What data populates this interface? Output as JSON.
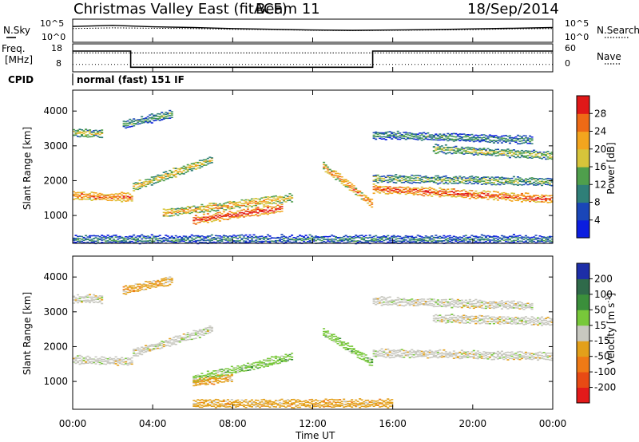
{
  "header": {
    "title": "Christmas Valley East (fitACF)",
    "beam": "Beam 11",
    "date": "18/Sep/2014"
  },
  "nsky_panel": {
    "left_label": "N.Sky",
    "left_ticks": [
      "10^5",
      "10^0"
    ],
    "right_label": "N.Search",
    "right_ticks": [
      "10^5",
      "10^0"
    ]
  },
  "freq_panel": {
    "left_label_line1": "Freq.",
    "left_label_line2": "[MHz]",
    "left_ticks": [
      "18",
      "8"
    ],
    "right_label": "Nave",
    "right_ticks": [
      "60",
      "0"
    ]
  },
  "cpid": {
    "label": "CPID",
    "text": "normal (fast) 151 IF"
  },
  "x_axis": {
    "label": "Time UT",
    "ticks": [
      "00:00",
      "04:00",
      "08:00",
      "12:00",
      "16:00",
      "20:00",
      "00:00"
    ]
  },
  "colorbars": {
    "power": {
      "label": "Power [dB]",
      "ticks": [
        "4",
        "8",
        "12",
        "16",
        "20",
        "24",
        "28"
      ],
      "colors": [
        "#0b1de0",
        "#1a46b8",
        "#2f7f78",
        "#4f9f4c",
        "#d7c43a",
        "#f3a51e",
        "#ee6a16",
        "#e01818"
      ]
    },
    "velocity": {
      "label": "Velocity [m s",
      "label_sup": "-1",
      "label_end": "]",
      "ticks": [
        "200",
        "100",
        "50",
        "15",
        "-15",
        "-50",
        "-100",
        "-200"
      ],
      "colors": [
        "#1d2ea8",
        "#2f6a4a",
        "#3b8f3b",
        "#78c83a",
        "#c8c8c0",
        "#e3a01a",
        "#ef7a16",
        "#e84a14",
        "#e31a1a"
      ]
    }
  },
  "chart_data": [
    {
      "type": "heatmap",
      "name": "power",
      "ylabel": "Slant Range [km]",
      "xlabel": "",
      "ylim": [
        200,
        4600
      ],
      "xlim": [
        0,
        24
      ],
      "yticks": [
        "1000",
        "2000",
        "3000",
        "4000"
      ],
      "bands": [
        {
          "x": [
            0.0,
            3.0
          ],
          "y_start": [
            1550,
            1500
          ],
          "y_end": [
            1450,
            1800
          ],
          "level": 0.85
        },
        {
          "x": [
            0.0,
            1.5
          ],
          "y_start": [
            3350,
            3350
          ],
          "y_end": [
            3350,
            3350
          ],
          "level": 0.55
        },
        {
          "x": [
            3.0,
            7.0
          ],
          "y_start": [
            1800,
            2600
          ],
          "y_end": [
            1700,
            2400
          ],
          "level": 0.6
        },
        {
          "x": [
            2.5,
            5.0
          ],
          "y_start": [
            3600,
            3900
          ],
          "y_end": [
            3600,
            3900
          ],
          "level": 0.4
        },
        {
          "x": [
            4.5,
            11.0
          ],
          "y_start": [
            1050,
            1500
          ],
          "y_end": [
            1100,
            1700
          ],
          "level": 0.7
        },
        {
          "x": [
            6.0,
            10.5
          ],
          "y_start": [
            850,
            1200
          ],
          "y_end": [
            900,
            1300
          ],
          "level": 0.95
        },
        {
          "x": [
            12.5,
            15.0
          ],
          "y_start": [
            2400,
            1300
          ],
          "y_end": [
            2400,
            1300
          ],
          "level": 0.8
        },
        {
          "x": [
            15.0,
            24.0
          ],
          "y_start": [
            1750,
            1450
          ],
          "y_end": [
            1750,
            1450
          ],
          "level": 0.9
        },
        {
          "x": [
            15.0,
            24.0
          ],
          "y_start": [
            2050,
            1950
          ],
          "y_end": [
            2050,
            1950
          ],
          "level": 0.45
        },
        {
          "x": [
            15.0,
            23.0
          ],
          "y_start": [
            3300,
            3150
          ],
          "y_end": [
            3300,
            3150
          ],
          "level": 0.35
        },
        {
          "x": [
            18.0,
            24.0
          ],
          "y_start": [
            2900,
            2700
          ],
          "y_end": [
            2900,
            2700
          ],
          "level": 0.5
        },
        {
          "x": [
            0.0,
            24.0
          ],
          "y_start": [
            300,
            300
          ],
          "y_end": [
            300,
            300
          ],
          "level": 0.3
        }
      ]
    },
    {
      "type": "heatmap",
      "name": "velocity",
      "ylabel": "Slant Range [km]",
      "xlabel": "Time UT",
      "ylim": [
        200,
        4600
      ],
      "xlim": [
        0,
        24
      ],
      "yticks": [
        "1000",
        "2000",
        "3000",
        "4000"
      ],
      "bands": [
        {
          "x": [
            0.0,
            3.0
          ],
          "y_start": [
            1600,
            1550
          ],
          "y_end": [
            1500,
            1900
          ],
          "level": 0
        },
        {
          "x": [
            0.0,
            1.5
          ],
          "y_start": [
            3350,
            3350
          ],
          "y_end": [
            3350,
            3350
          ],
          "level": 0
        },
        {
          "x": [
            3.0,
            7.0
          ],
          "y_start": [
            1800,
            2500
          ],
          "y_end": [
            1700,
            2300
          ],
          "level": 0
        },
        {
          "x": [
            2.5,
            5.0
          ],
          "y_start": [
            3600,
            3900
          ],
          "y_end": [
            3600,
            3900
          ],
          "level": -40
        },
        {
          "x": [
            6.0,
            11.0
          ],
          "y_start": [
            1050,
            1700
          ],
          "y_end": [
            1100,
            1800
          ],
          "level": 30
        },
        {
          "x": [
            6.0,
            8.0
          ],
          "y_start": [
            950,
            1100
          ],
          "y_end": [
            950,
            1100
          ],
          "level": -60
        },
        {
          "x": [
            12.5,
            15.0
          ],
          "y_start": [
            2400,
            1500
          ],
          "y_end": [
            2400,
            1500
          ],
          "level": 30
        },
        {
          "x": [
            15.0,
            24.0
          ],
          "y_start": [
            1800,
            1700
          ],
          "y_end": [
            1800,
            1700
          ],
          "level": 0
        },
        {
          "x": [
            15.0,
            23.0
          ],
          "y_start": [
            3300,
            3150
          ],
          "y_end": [
            3300,
            3150
          ],
          "level": 0
        },
        {
          "x": [
            18.0,
            24.0
          ],
          "y_start": [
            2800,
            2700
          ],
          "y_end": [
            2800,
            2700
          ],
          "level": 0
        },
        {
          "x": [
            6.0,
            16.0
          ],
          "y_start": [
            350,
            350
          ],
          "y_end": [
            350,
            350
          ],
          "level": -60
        }
      ]
    },
    {
      "type": "line",
      "name": "n_sky_search",
      "x": [
        0,
        2,
        4,
        6,
        8,
        10,
        12,
        14,
        16,
        18,
        20,
        22,
        24
      ],
      "series": [
        {
          "values": [
            3.6,
            3.9,
            3.5,
            3.3,
            3.0,
            2.8,
            2.6,
            2.5,
            2.6,
            2.7,
            2.9,
            3.1,
            3.3
          ]
        },
        {
          "values": [
            3.0,
            3.2,
            3.1,
            3.0,
            2.8,
            2.7,
            2.5,
            2.4,
            2.5,
            2.6,
            2.7,
            2.9,
            3.0
          ]
        }
      ]
    },
    {
      "type": "line",
      "name": "frequency_nave",
      "x": [
        0,
        2.9,
        2.9,
        15.0,
        15.0,
        24
      ],
      "series": [
        {
          "values": [
            16.5,
            16.5,
            9.0,
            9.0,
            16.5,
            16.5
          ]
        },
        {
          "values": [
            46,
            46,
            46,
            46,
            46,
            46
          ]
        },
        {
          "values": [
            14,
            14,
            14,
            14,
            14,
            14
          ]
        }
      ]
    }
  ]
}
